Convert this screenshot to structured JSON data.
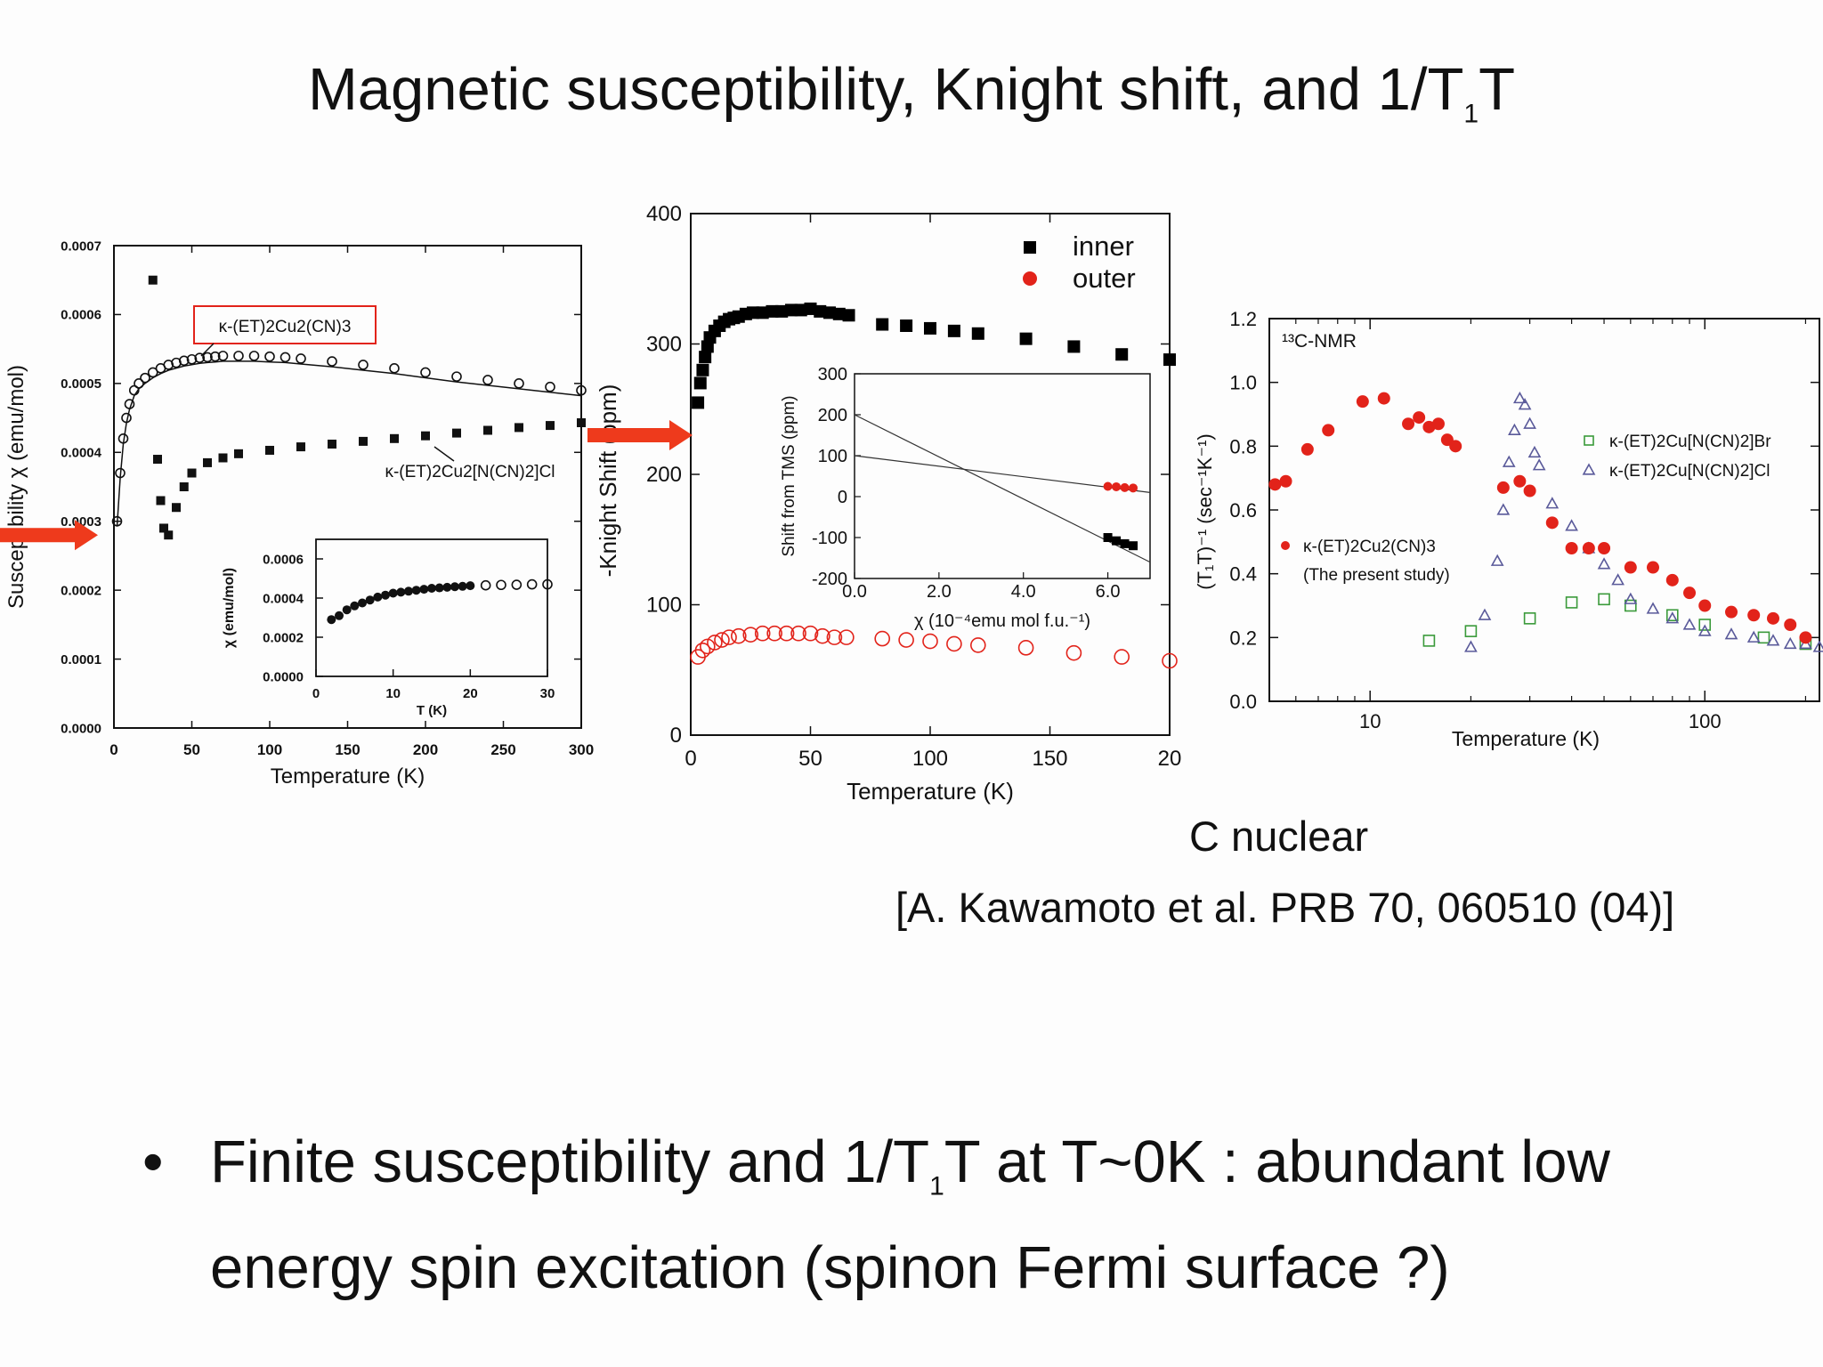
{
  "slide": {
    "title_main": "Magnetic susceptibility, Knight shift, and 1/T",
    "title_sub": "1",
    "title_end": "T",
    "caption_nuclear": "C nuclear",
    "citation": "[A. Kawamoto et al. PRB 70, 060510 (04)]",
    "bullet_marker": "•",
    "bullet_part1": "Finite susceptibility and 1/T",
    "bullet_sub": "1",
    "bullet_part2": "T at T~0K :  abundant low energy spin excitation (spinon Fermi surface ?)",
    "colors": {
      "arrow": "#ee3a1c",
      "red": "#e2231a",
      "green": "#3a9a3a",
      "triangle": "#5a5a9a"
    }
  },
  "chart_data": [
    {
      "type": "scatter",
      "ylabel": "Susceptibility  χ  (emu/mol)",
      "xlabel": "Temperature (K)",
      "xlim": [
        0,
        300
      ],
      "ylim": [
        0,
        0.0007
      ],
      "x_ticks": [
        "0",
        "50",
        "100",
        "150",
        "200",
        "250",
        "300"
      ],
      "y_ticks": [
        "0.0000",
        "0.0001",
        "0.0002",
        "0.0003",
        "0.0004",
        "0.0005",
        "0.0006",
        "0.0007"
      ],
      "series": [
        {
          "name": "κ-(ET)2Cu2(CN)3",
          "marker": "circle",
          "x": [
            2,
            4,
            6,
            8,
            10,
            13,
            16,
            20,
            25,
            30,
            35,
            40,
            45,
            50,
            55,
            60,
            65,
            70,
            80,
            90,
            100,
            110,
            120,
            140,
            160,
            180,
            200,
            220,
            240,
            260,
            280,
            300
          ],
          "y": [
            0.0003,
            0.00037,
            0.00042,
            0.00045,
            0.00047,
            0.00049,
            0.0005,
            0.000508,
            0.000516,
            0.000522,
            0.000527,
            0.00053,
            0.000533,
            0.000535,
            0.000537,
            0.000538,
            0.000539,
            0.00054,
            0.00054,
            0.00054,
            0.000539,
            0.000538,
            0.000536,
            0.000532,
            0.000527,
            0.000522,
            0.000516,
            0.00051,
            0.000505,
            0.0005,
            0.000495,
            0.00049
          ]
        },
        {
          "name": "κ-(ET)2Cu2[N(CN)2]Cl",
          "marker": "square",
          "x": [
            25,
            28,
            30,
            32,
            35,
            40,
            45,
            50,
            60,
            70,
            80,
            100,
            120,
            140,
            160,
            180,
            200,
            220,
            240,
            260,
            280,
            300
          ],
          "y": [
            0.00065,
            0.00039,
            0.00033,
            0.00029,
            0.00028,
            0.00032,
            0.00035,
            0.00037,
            0.000385,
            0.000392,
            0.000398,
            0.000403,
            0.000408,
            0.000412,
            0.000416,
            0.00042,
            0.000424,
            0.000428,
            0.000432,
            0.000436,
            0.000439,
            0.000443
          ]
        }
      ],
      "inset": {
        "ylabel": "χ (emu/mol)",
        "xlabel": "T  (K)",
        "xlim": [
          0,
          30
        ],
        "ylim": [
          0,
          0.0007
        ],
        "x_ticks": [
          "0",
          "10",
          "20",
          "30"
        ],
        "y_ticks": [
          "0.0000",
          "0.0002",
          "0.0004",
          "0.0006"
        ],
        "x": [
          2,
          3,
          4,
          5,
          6,
          7,
          8,
          9,
          10,
          11,
          12,
          13,
          14,
          15,
          16,
          17,
          18,
          19,
          20,
          22,
          24,
          26,
          28,
          30
        ],
        "y": [
          0.00029,
          0.00031,
          0.00034,
          0.00036,
          0.000375,
          0.00039,
          0.000405,
          0.000415,
          0.000425,
          0.00043,
          0.000435,
          0.00044,
          0.000445,
          0.00045,
          0.000452,
          0.000455,
          0.000458,
          0.00046,
          0.000463,
          0.000465,
          0.000467,
          0.000468,
          0.00047,
          0.00047
        ]
      }
    },
    {
      "type": "scatter",
      "ylabel": "-Knight Shift (ppm)",
      "xlabel": "Temperature (K)",
      "xlim": [
        0,
        200
      ],
      "ylim": [
        0,
        400
      ],
      "x_ticks": [
        "0",
        "50",
        "100",
        "150",
        "20"
      ],
      "y_ticks": [
        "0",
        "100",
        "200",
        "300",
        "400"
      ],
      "series": [
        {
          "name": "inner",
          "marker": "square",
          "color": "#000000",
          "x": [
            3,
            4,
            5,
            6,
            7,
            8,
            10,
            12,
            14,
            16,
            18,
            20,
            23,
            26,
            30,
            34,
            38,
            42,
            46,
            50,
            54,
            58,
            62,
            66,
            80,
            90,
            100,
            110,
            120,
            140,
            160,
            180,
            200
          ],
          "y": [
            255,
            270,
            280,
            290,
            298,
            305,
            310,
            314,
            317,
            319,
            320,
            321,
            323,
            324,
            324,
            325,
            325,
            326,
            326,
            327,
            325,
            324,
            323,
            322,
            315,
            314,
            312,
            310,
            308,
            304,
            298,
            292,
            288
          ]
        },
        {
          "name": "outer",
          "marker": "circle",
          "color": "#e2231a",
          "x": [
            3,
            5,
            7,
            10,
            13,
            16,
            20,
            25,
            30,
            35,
            40,
            45,
            50,
            55,
            60,
            65,
            80,
            90,
            100,
            110,
            120,
            140,
            160,
            180,
            200
          ],
          "y": [
            60,
            65,
            68,
            71,
            73,
            75,
            76,
            77,
            78,
            78,
            78,
            78,
            78,
            76,
            75,
            75,
            74,
            73,
            72,
            70,
            69,
            67,
            63,
            60,
            57
          ]
        }
      ],
      "inset": {
        "ylabel": "Shift from TMS  (ppm)",
        "xlabel": "χ (10⁻⁴emu mol f.u.⁻¹)",
        "xlim": [
          0,
          7
        ],
        "ylim": [
          -200,
          300
        ],
        "x_ticks": [
          "0.0",
          "2.0",
          "4.0",
          "6.0"
        ],
        "y_ticks": [
          "-200",
          "-100",
          "0",
          "100",
          "200",
          "300"
        ],
        "lines": [
          {
            "x": [
              0,
              7
            ],
            "y": [
              200,
              -160
            ]
          },
          {
            "x": [
              0,
              7
            ],
            "y": [
              100,
              10
            ]
          }
        ],
        "red_points": {
          "x": [
            6.0,
            6.2,
            6.4,
            6.6
          ],
          "y": [
            25,
            24,
            22,
            21
          ]
        },
        "black_points": {
          "x": [
            6.0,
            6.2,
            6.4,
            6.6
          ],
          "y": [
            -100,
            -108,
            -115,
            -120
          ]
        }
      }
    },
    {
      "type": "scatter",
      "title": "¹³C-NMR",
      "ylabel": "(T₁T)⁻¹ (sec⁻¹K⁻¹)",
      "xlabel": "Temperature (K)",
      "x_scale": "log",
      "xlim": [
        5,
        220
      ],
      "ylim": [
        0,
        1.2
      ],
      "x_ticks": [
        "10",
        "100"
      ],
      "y_ticks": [
        "0.0",
        "0.2",
        "0.4",
        "0.6",
        "0.8",
        "1.0",
        "1.2"
      ],
      "series": [
        {
          "name": "κ-(ET)2Cu[N(CN)2]Br",
          "marker": "open-square",
          "color": "#3a9a3a",
          "x": [
            15,
            20,
            30,
            40,
            50,
            60,
            80,
            100,
            150,
            200
          ],
          "y": [
            0.19,
            0.22,
            0.26,
            0.31,
            0.32,
            0.3,
            0.27,
            0.24,
            0.2,
            0.18
          ]
        },
        {
          "name": "κ-(ET)2Cu[N(CN)2]Cl",
          "marker": "open-triangle",
          "color": "#5a5a9a",
          "x": [
            20,
            22,
            24,
            25,
            26,
            27,
            28,
            29,
            30,
            31,
            32,
            35,
            40,
            45,
            50,
            55,
            60,
            70,
            80,
            90,
            100,
            120,
            140,
            160,
            180,
            200,
            220
          ],
          "y": [
            0.17,
            0.27,
            0.44,
            0.6,
            0.75,
            0.85,
            0.95,
            0.93,
            0.87,
            0.78,
            0.74,
            0.62,
            0.55,
            0.48,
            0.43,
            0.38,
            0.32,
            0.29,
            0.26,
            0.24,
            0.22,
            0.21,
            0.2,
            0.19,
            0.18,
            0.18,
            0.17
          ]
        },
        {
          "name": "κ-(ET)2Cu2(CN)3 (The present study)",
          "marker": "filled-circle",
          "color": "#e2231a",
          "x": [
            5.2,
            5.6,
            6.5,
            7.5,
            9.5,
            11,
            13,
            14,
            15,
            16,
            17,
            18,
            25,
            28,
            30,
            35,
            40,
            45,
            50,
            60,
            70,
            80,
            90,
            100,
            120,
            140,
            160,
            180,
            200
          ],
          "y": [
            0.68,
            0.69,
            0.79,
            0.85,
            0.94,
            0.95,
            0.87,
            0.89,
            0.86,
            0.87,
            0.82,
            0.8,
            0.67,
            0.69,
            0.66,
            0.56,
            0.48,
            0.48,
            0.48,
            0.42,
            0.42,
            0.38,
            0.34,
            0.3,
            0.28,
            0.27,
            0.26,
            0.24,
            0.2
          ]
        }
      ]
    }
  ]
}
